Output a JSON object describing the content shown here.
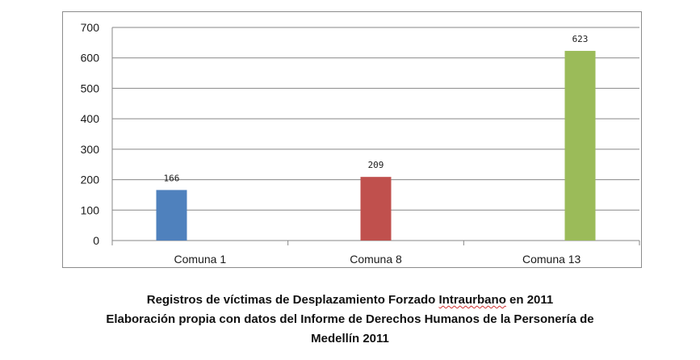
{
  "chart_data": {
    "type": "bar",
    "categories": [
      "Comuna 1",
      "Comuna 8",
      "Comuna 13"
    ],
    "values": [
      166,
      209,
      623
    ],
    "data_labels": [
      "166",
      "209",
      "623"
    ],
    "colors": [
      "#4f81bd",
      "#c0504d",
      "#9bbb59"
    ],
    "ylim": [
      0,
      700
    ],
    "yticks": [
      0,
      100,
      200,
      300,
      400,
      500,
      600,
      700
    ],
    "ytick_labels": [
      "0",
      "100",
      "200",
      "300",
      "400",
      "500",
      "600",
      "700"
    ],
    "xlabel": "",
    "ylabel": "",
    "grid": true,
    "gridline_color": "#878787",
    "title": ""
  },
  "caption": {
    "line1_pre": "Registros de víctimas de Desplazamiento Forzado ",
    "line1_flag": "Intraurbano",
    "line1_post": " en 2011",
    "line2": "Elaboración propia con datos del Informe de Derechos Humanos de la Personería de",
    "line3": "Medellín 2011"
  }
}
